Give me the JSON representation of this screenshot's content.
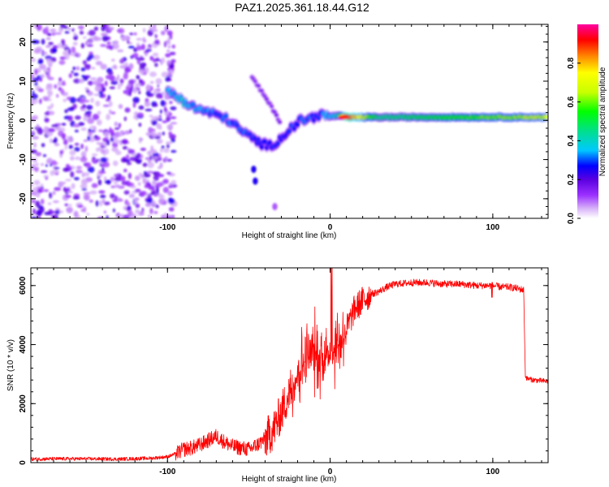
{
  "title": "PAZ1.2025.361.18.44.G12",
  "chart_data": [
    {
      "type": "heatmap",
      "title": "PAZ1.2025.361.18.44.G12",
      "xlabel": "Height of straight line (km)",
      "ylabel": "Frequency (Hz)",
      "xlim": [
        -184,
        134
      ],
      "ylim": [
        -25,
        24.5
      ],
      "xticks": [
        -100,
        0,
        100
      ],
      "yticks": [
        20,
        10,
        0,
        -10,
        -20
      ],
      "colorbar": {
        "label": "Normalized spectral amplitude",
        "range": [
          0,
          1
        ],
        "ticks": [
          0.0,
          0.2,
          0.4,
          0.6,
          0.8
        ],
        "ticklabels": [
          "0.0",
          "0.2",
          "0.4",
          "0.6",
          "0.8"
        ],
        "colors": [
          "#ffffff",
          "#d8b4f8",
          "#9b30ff",
          "#5a00e0",
          "#0000ff",
          "#00c8ff",
          "#00e08c",
          "#00ff00",
          "#c8ff00",
          "#ffff00",
          "#ff9000",
          "#ff0000",
          "#ff00a0"
        ]
      },
      "features": {
        "noise_region": {
          "x_range": [
            -184,
            -100
          ],
          "f_range": [
            -25,
            24.5
          ],
          "amplitude": [
            0.05,
            0.25
          ]
        },
        "signal_track": [
          {
            "x": -100,
            "f": 7.5,
            "a": 0.32
          },
          {
            "x": -92,
            "f": 5.5,
            "a": 0.38
          },
          {
            "x": -85,
            "f": 3.5,
            "a": 0.34
          },
          {
            "x": -78,
            "f": 2.5,
            "a": 0.32
          },
          {
            "x": -70,
            "f": 1.5,
            "a": 0.3
          },
          {
            "x": -62,
            "f": 0,
            "a": 0.3
          },
          {
            "x": -55,
            "f": -2.5,
            "a": 0.3
          },
          {
            "x": -48,
            "f": -4.5,
            "a": 0.28
          },
          {
            "x": -42,
            "f": -6,
            "a": 0.26
          },
          {
            "x": -36,
            "f": -6.5,
            "a": 0.26
          },
          {
            "x": -30,
            "f": -4.5,
            "a": 0.28
          },
          {
            "x": -24,
            "f": -2,
            "a": 0.28
          },
          {
            "x": -18,
            "f": 0,
            "a": 0.3
          },
          {
            "x": -12,
            "f": 0.5,
            "a": 0.3
          },
          {
            "x": -6,
            "f": 1.5,
            "a": 0.3
          },
          {
            "x": 0,
            "f": 1,
            "a": 0.35
          },
          {
            "x": 5,
            "f": 1.2,
            "a": 0.4
          },
          {
            "x": 10,
            "f": 0.8,
            "a": 0.95
          },
          {
            "x": 30,
            "f": 0.8,
            "a": 0.45
          },
          {
            "x": 60,
            "f": 0.8,
            "a": 0.5
          },
          {
            "x": 100,
            "f": 0.8,
            "a": 0.6
          },
          {
            "x": 134,
            "f": 0.8,
            "a": 0.65
          }
        ],
        "branch_track": [
          {
            "x": -48,
            "f": 11,
            "a": 0.15
          },
          {
            "x": -40,
            "f": 6,
            "a": 0.15
          },
          {
            "x": -34,
            "f": 2,
            "a": 0.15
          },
          {
            "x": -30,
            "f": -1,
            "a": 0.15
          }
        ],
        "secondary_blobs": [
          {
            "x": -47,
            "f": -12.5,
            "a": 0.25
          },
          {
            "x": -46,
            "f": -15.5,
            "a": 0.25
          },
          {
            "x": -34,
            "f": -22,
            "a": 0.1
          }
        ]
      }
    },
    {
      "type": "line",
      "xlabel": "Height of straight line (km)",
      "ylabel": "SNR (10 * v/v)",
      "xlim": [
        -184,
        134
      ],
      "ylim": [
        0,
        6600
      ],
      "xticks": [
        -100,
        0,
        100
      ],
      "yticks": [
        0,
        2000,
        4000,
        6000
      ],
      "series": [
        {
          "name": "SNR",
          "color": "#ff0000",
          "x": [
            -184,
            -170,
            -150,
            -130,
            -110,
            -100,
            -95,
            -90,
            -85,
            -80,
            -75,
            -70,
            -65,
            -60,
            -55,
            -50,
            -45,
            -40,
            -35,
            -30,
            -25,
            -20,
            -15,
            -10,
            -5,
            0,
            5,
            10,
            15,
            20,
            25,
            30,
            35,
            40,
            50,
            60,
            70,
            80,
            90,
            100,
            105,
            110,
            115,
            119,
            120,
            121,
            125,
            134
          ],
          "values": [
            120,
            130,
            130,
            120,
            150,
            200,
            300,
            450,
            500,
            600,
            750,
            900,
            700,
            550,
            500,
            450,
            600,
            800,
            1100,
            1700,
            2400,
            3000,
            3500,
            3700,
            3600,
            3700,
            4000,
            4500,
            5200,
            5500,
            5700,
            5800,
            5950,
            6050,
            6100,
            6100,
            6050,
            6050,
            6000,
            6000,
            5950,
            5950,
            5900,
            5850,
            2950,
            2850,
            2800,
            2750
          ]
        }
      ]
    }
  ]
}
